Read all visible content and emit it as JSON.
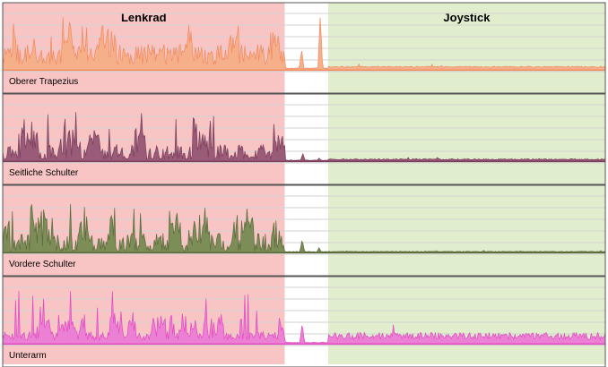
{
  "colors": {
    "region_left": "#f8c4c4",
    "region_middle": "#ffffff",
    "region_right": "#e1eecd",
    "gridline": "#d2d2d2",
    "panel_border": "#555555"
  },
  "chart_data": {
    "type": "line",
    "grid": true,
    "regions": [
      {
        "label": "Lenkrad",
        "x_start": 0.0,
        "x_end": 0.468,
        "color": "#f8c4c4"
      },
      {
        "label": "",
        "x_start": 0.468,
        "x_end": 0.54,
        "color": "#ffffff"
      },
      {
        "label": "Joystick",
        "x_start": 0.54,
        "x_end": 1.0,
        "color": "#e1eecd"
      }
    ],
    "series": [
      {
        "name": "Oberer Trapezius",
        "color": "#f08a60",
        "fill": "#f6b089",
        "baseline": 0.08,
        "left_level": 0.35,
        "left_var": 0.5,
        "left_burst": 0.9,
        "right_level": 0.04,
        "right_var": 0.02,
        "density": 1.0,
        "seed": 11,
        "spikes": [
          {
            "x": 0.496,
            "h": 0.35
          },
          {
            "x": 0.527,
            "h": 0.92
          }
        ]
      },
      {
        "name": "Seitliche Schulter",
        "color": "#7a3e5a",
        "fill": "#9a5b79",
        "baseline": 0.03,
        "left_level": 0.25,
        "left_var": 0.45,
        "left_burst": 0.9,
        "right_level": 0.02,
        "right_var": 0.02,
        "density": 0.75,
        "seed": 23,
        "spikes": [
          {
            "x": 0.498,
            "h": 0.13
          },
          {
            "x": 0.525,
            "h": 0.05
          }
        ]
      },
      {
        "name": "Vordere Schulter",
        "color": "#5a6b3a",
        "fill": "#7d8d58",
        "baseline": 0.02,
        "left_level": 0.3,
        "left_var": 0.5,
        "left_burst": 1.0,
        "right_level": 0.01,
        "right_var": 0.01,
        "density": 0.7,
        "seed": 37,
        "spikes": [
          {
            "x": 0.497,
            "h": 0.22
          },
          {
            "x": 0.525,
            "h": 0.08
          }
        ]
      },
      {
        "name": "Unterarm",
        "color": "#e04ac0",
        "fill": "#ec80d4",
        "baseline": 0.05,
        "left_level": 0.15,
        "left_var": 0.35,
        "left_burst": 0.95,
        "right_level": 0.07,
        "right_var": 0.12,
        "density": 1.0,
        "seed": 51,
        "spikes": [
          {
            "x": 0.497,
            "h": 0.35
          }
        ]
      }
    ]
  }
}
